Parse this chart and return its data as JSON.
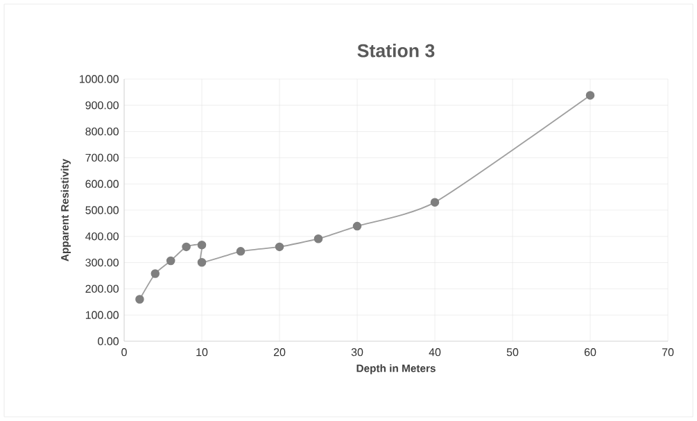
{
  "chart_data": {
    "type": "line",
    "title": "Station 3",
    "xlabel": "Depth in Meters",
    "ylabel": "Apparent Resistivity",
    "x": [
      2,
      4,
      6,
      8,
      10,
      10,
      15,
      20,
      25,
      30,
      40,
      60
    ],
    "series": [
      {
        "color": "#7f7f7f",
        "values": [
          160,
          258,
          307,
          360,
          367,
          301,
          343,
          360,
          391,
          439,
          530,
          938
        ]
      }
    ],
    "xlim": [
      0,
      70
    ],
    "xticks": [
      0,
      10,
      20,
      30,
      40,
      50,
      60,
      70
    ],
    "ylim": [
      0,
      1000
    ],
    "yticks": [
      {
        "value": 0,
        "label": "0.00"
      },
      {
        "value": 100,
        "label": "100.00"
      },
      {
        "value": 200,
        "label": "200.00"
      },
      {
        "value": 300,
        "label": "300.00"
      },
      {
        "value": 400,
        "label": "400.00"
      },
      {
        "value": 500,
        "label": "500.00"
      },
      {
        "value": 600,
        "label": "600.00"
      },
      {
        "value": 700,
        "label": "700.00"
      },
      {
        "value": 800,
        "label": "800.00"
      },
      {
        "value": 900,
        "label": "900.00"
      },
      {
        "value": 1000,
        "label": "1000.00"
      }
    ],
    "grid": true,
    "marker": "circle",
    "line_style": "solid",
    "legend": false
  }
}
